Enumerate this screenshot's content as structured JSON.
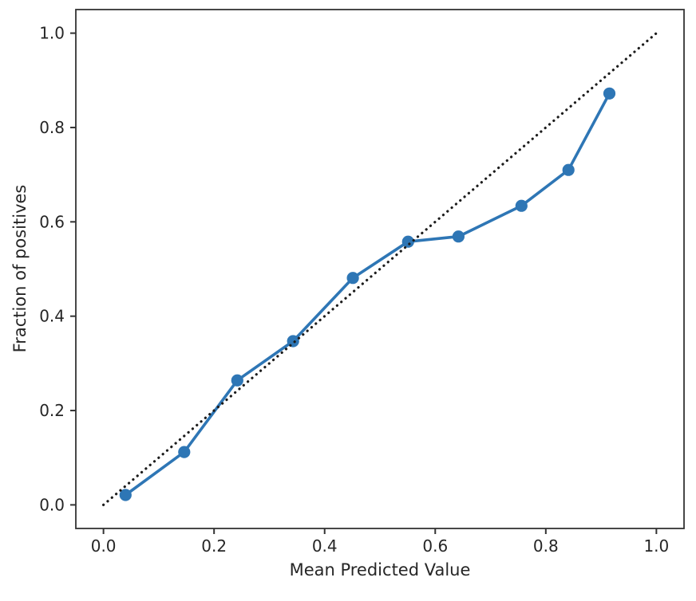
{
  "figure": {
    "background": "#ffffff"
  },
  "chart_data": {
    "type": "line",
    "title": "",
    "xlabel": "Mean Predicted Value",
    "ylabel": "Fraction of positives",
    "xlim": [
      -0.05,
      1.05
    ],
    "ylim": [
      -0.05,
      1.05
    ],
    "grid": false,
    "legend": false,
    "x_ticks": [
      0.0,
      0.2,
      0.4,
      0.6,
      0.8,
      1.0
    ],
    "y_ticks": [
      0.0,
      0.2,
      0.4,
      0.6,
      0.8,
      1.0
    ],
    "x_tick_labels": [
      "0.0",
      "0.2",
      "0.4",
      "0.6",
      "0.8",
      "1.0"
    ],
    "y_tick_labels": [
      "0.0",
      "0.2",
      "0.4",
      "0.6",
      "0.8",
      "1.0"
    ],
    "axis_color": "#333333",
    "tick_label_color": "#262626",
    "series": [
      {
        "name": "calibration-curve",
        "style": "solid-with-circle-markers",
        "color": "#2e76b5",
        "marker": "circle",
        "points": [
          {
            "x": 0.04,
            "y": 0.021
          },
          {
            "x": 0.146,
            "y": 0.112
          },
          {
            "x": 0.242,
            "y": 0.264
          },
          {
            "x": 0.343,
            "y": 0.347
          },
          {
            "x": 0.451,
            "y": 0.481
          },
          {
            "x": 0.551,
            "y": 0.558
          },
          {
            "x": 0.642,
            "y": 0.569
          },
          {
            "x": 0.756,
            "y": 0.634
          },
          {
            "x": 0.841,
            "y": 0.71
          },
          {
            "x": 0.915,
            "y": 0.872
          }
        ]
      },
      {
        "name": "perfect-calibration-reference",
        "style": "dotted",
        "color": "#1c1c1c",
        "marker": "none",
        "points": [
          {
            "x": 0.0,
            "y": 0.0
          },
          {
            "x": 1.0,
            "y": 1.0
          }
        ]
      }
    ]
  }
}
